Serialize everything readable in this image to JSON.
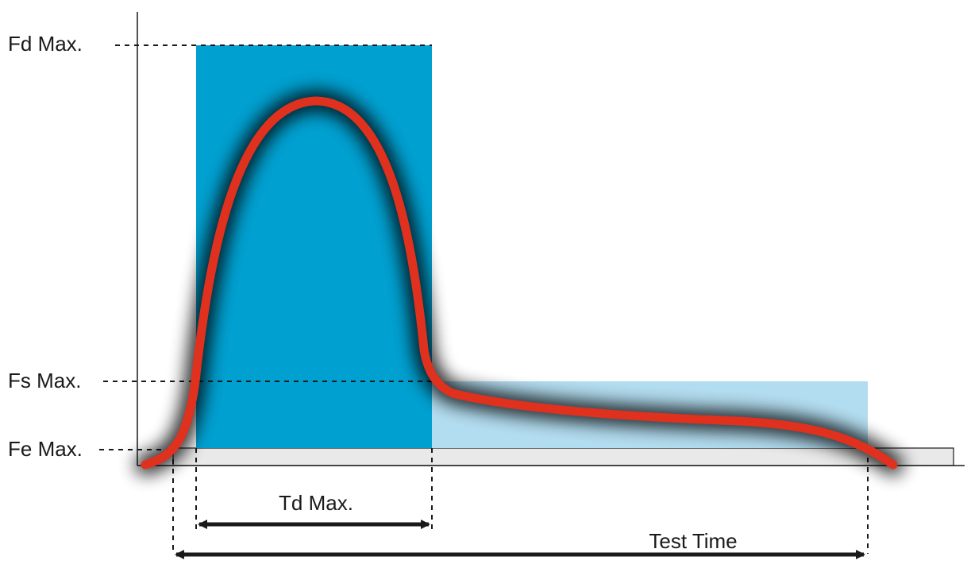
{
  "labels": {
    "fd_max": "Fd Max.",
    "fs_max": "Fs Max.",
    "fe_max": "Fe Max.",
    "td_max": "Td Max.",
    "test_time": "Test Time"
  },
  "colors": {
    "dynamic_zone": "#00a0d0",
    "static_zone": "#b2dcef",
    "baseline_band": "#e9e9e9",
    "force_curve": "#e0301e",
    "glow": "#000000",
    "lines": "#1a1a1a"
  }
}
